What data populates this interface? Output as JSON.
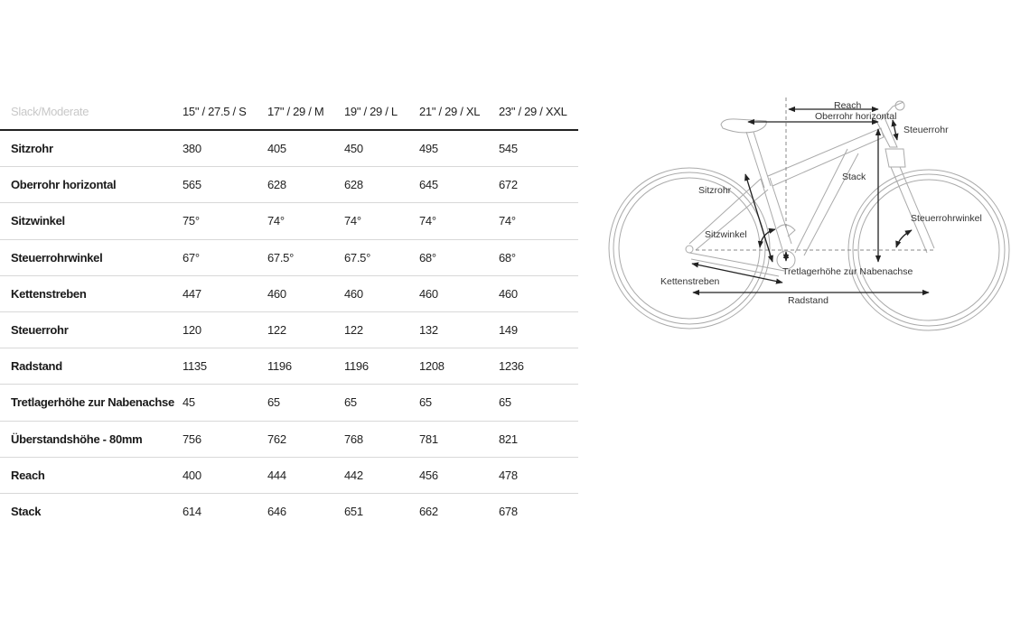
{
  "table": {
    "header": {
      "label": "Slack/Moderate",
      "sizes": [
        "15\" / 27.5 / S",
        "17\" / 29 / M",
        "19\" / 29 / L",
        "21\" / 29 / XL",
        "23\" / 29 / XXL"
      ]
    },
    "rows": [
      {
        "label": "Sitzrohr",
        "values": [
          "380",
          "405",
          "450",
          "495",
          "545"
        ]
      },
      {
        "label": "Oberrohr horizontal",
        "values": [
          "565",
          "628",
          "628",
          "645",
          "672"
        ]
      },
      {
        "label": "Sitzwinkel",
        "values": [
          "75°",
          "74°",
          "74°",
          "74°",
          "74°"
        ]
      },
      {
        "label": "Steuerrohrwinkel",
        "values": [
          "67°",
          "67.5°",
          "67.5°",
          "68°",
          "68°"
        ]
      },
      {
        "label": "Kettenstreben",
        "values": [
          "447",
          "460",
          "460",
          "460",
          "460"
        ]
      },
      {
        "label": "Steuerrohr",
        "values": [
          "120",
          "122",
          "122",
          "132",
          "149"
        ]
      },
      {
        "label": "Radstand",
        "values": [
          "1135",
          "1196",
          "1196",
          "1208",
          "1236"
        ]
      },
      {
        "label": "Tretlagerhöhe zur Nabenachse",
        "values": [
          "45",
          "65",
          "65",
          "65",
          "65"
        ]
      },
      {
        "label": "Überstandshöhe - 80mm",
        "values": [
          "756",
          "762",
          "768",
          "781",
          "821"
        ]
      },
      {
        "label": "Reach",
        "values": [
          "400",
          "444",
          "442",
          "456",
          "478"
        ]
      },
      {
        "label": "Stack",
        "values": [
          "614",
          "646",
          "651",
          "662",
          "678"
        ]
      }
    ]
  },
  "diagram": {
    "labels": {
      "reach": "Reach",
      "oberrohr": "Oberrohr horizontal",
      "steuerrohr": "Steuerrohr",
      "stack": "Stack",
      "sitzrohr": "Sitzrohr",
      "steuerrohrwinkel": "Steuerrohrwinkel",
      "sitzwinkel": "Sitzwinkel",
      "tretlager": "Tretlagerhöhe zur Nabenachse",
      "kettenstreben": "Kettenstreben",
      "radstand": "Radstand"
    }
  }
}
